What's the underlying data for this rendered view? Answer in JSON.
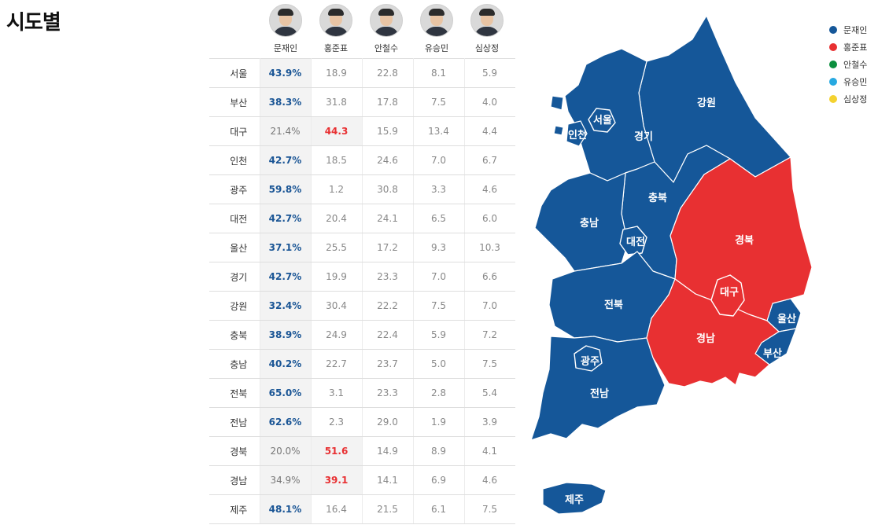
{
  "title": "시도별",
  "candidates": [
    {
      "name": "문재인",
      "color": "#155799"
    },
    {
      "name": "홍준표",
      "color": "#e83032"
    },
    {
      "name": "안철수",
      "color": "#0c8f3e"
    },
    {
      "name": "유승민",
      "color": "#27a9e1"
    },
    {
      "name": "심상정",
      "color": "#f4d230"
    }
  ],
  "rows": [
    {
      "region": "서울",
      "winner": 0,
      "v": [
        "43.9%",
        "18.9",
        "22.8",
        "8.1",
        "5.9"
      ]
    },
    {
      "region": "부산",
      "winner": 0,
      "v": [
        "38.3%",
        "31.8",
        "17.8",
        "7.5",
        "4.0"
      ]
    },
    {
      "region": "대구",
      "winner": 1,
      "v": [
        "21.4%",
        "44.3",
        "15.9",
        "13.4",
        "4.4"
      ]
    },
    {
      "region": "인천",
      "winner": 0,
      "v": [
        "42.7%",
        "18.5",
        "24.6",
        "7.0",
        "6.7"
      ]
    },
    {
      "region": "광주",
      "winner": 0,
      "v": [
        "59.8%",
        "1.2",
        "30.8",
        "3.3",
        "4.6"
      ]
    },
    {
      "region": "대전",
      "winner": 0,
      "v": [
        "42.7%",
        "20.4",
        "24.1",
        "6.5",
        "6.0"
      ]
    },
    {
      "region": "울산",
      "winner": 0,
      "v": [
        "37.1%",
        "25.5",
        "17.2",
        "9.3",
        "10.3"
      ]
    },
    {
      "region": "경기",
      "winner": 0,
      "v": [
        "42.7%",
        "19.9",
        "23.3",
        "7.0",
        "6.6"
      ]
    },
    {
      "region": "강원",
      "winner": 0,
      "v": [
        "32.4%",
        "30.4",
        "22.2",
        "7.5",
        "7.0"
      ]
    },
    {
      "region": "충북",
      "winner": 0,
      "v": [
        "38.9%",
        "24.9",
        "22.4",
        "5.9",
        "7.2"
      ]
    },
    {
      "region": "충남",
      "winner": 0,
      "v": [
        "40.2%",
        "22.7",
        "23.7",
        "5.0",
        "7.5"
      ]
    },
    {
      "region": "전북",
      "winner": 0,
      "v": [
        "65.0%",
        "3.1",
        "23.3",
        "2.8",
        "5.4"
      ]
    },
    {
      "region": "전남",
      "winner": 0,
      "v": [
        "62.6%",
        "2.3",
        "29.0",
        "1.9",
        "3.9"
      ]
    },
    {
      "region": "경북",
      "winner": 1,
      "v": [
        "20.0%",
        "51.6",
        "14.9",
        "8.9",
        "4.1"
      ]
    },
    {
      "region": "경남",
      "winner": 1,
      "v": [
        "34.9%",
        "39.1",
        "14.1",
        "6.9",
        "4.6"
      ]
    },
    {
      "region": "제주",
      "winner": 0,
      "v": [
        "48.1%",
        "16.4",
        "21.5",
        "6.1",
        "7.5"
      ]
    }
  ],
  "map_labels": {
    "seoul": "서울",
    "incheon": "인천",
    "gyeonggi": "경기",
    "gangwon": "강원",
    "chungbuk": "충북",
    "chungnam": "충남",
    "daejeon": "대전",
    "gyeongbuk": "경북",
    "daegu": "대구",
    "ulsan": "울산",
    "jeonbuk": "전북",
    "gyeongnam": "경남",
    "busan": "부산",
    "gwangju": "광주",
    "jeonnam": "전남",
    "jeju": "제주"
  },
  "map_winner_colors": {
    "blue": "#155799",
    "red": "#e83032"
  },
  "legend_names": [
    "문재인",
    "홍준표",
    "안철수",
    "유승민",
    "심상정"
  ]
}
